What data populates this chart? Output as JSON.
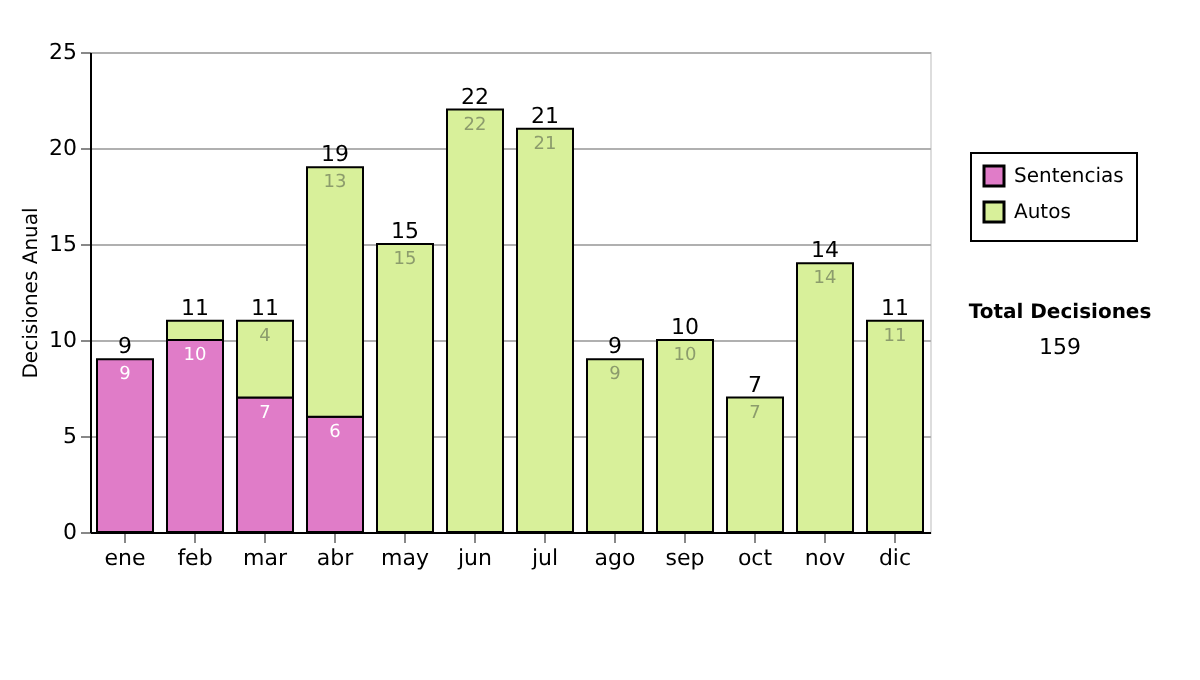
{
  "chart_data": {
    "type": "bar",
    "stacked": true,
    "ylabel": "Decisiones Anual",
    "categories": [
      "ene",
      "feb",
      "mar",
      "abr",
      "may",
      "jun",
      "jul",
      "ago",
      "sep",
      "oct",
      "nov",
      "dic"
    ],
    "series": [
      {
        "name": "Sentencias",
        "color": "#e07cc8",
        "values": [
          9,
          10,
          7,
          6,
          0,
          0,
          0,
          0,
          0,
          0,
          0,
          0
        ],
        "value_labels": [
          "9",
          "10",
          "7",
          "6",
          null,
          null,
          null,
          null,
          null,
          null,
          null,
          null
        ]
      },
      {
        "name": "Autos",
        "color": "#d8f09a",
        "values": [
          0,
          1,
          4,
          13,
          15,
          22,
          21,
          9,
          10,
          7,
          14,
          11
        ],
        "value_labels": [
          null,
          null,
          "4",
          "13",
          "15",
          "22",
          "21",
          "9",
          "10",
          "7",
          "14",
          "11"
        ]
      }
    ],
    "totals": [
      "9",
      "11",
      "11",
      "19",
      "15",
      "22",
      "21",
      "9",
      "10",
      "7",
      "14",
      "11"
    ],
    "ylim": [
      0,
      25
    ],
    "yticks": [
      0,
      5,
      10,
      15,
      20,
      25
    ],
    "grid": "y",
    "legend": "right",
    "annotations": [
      "Total Decisiones",
      "159"
    ]
  }
}
